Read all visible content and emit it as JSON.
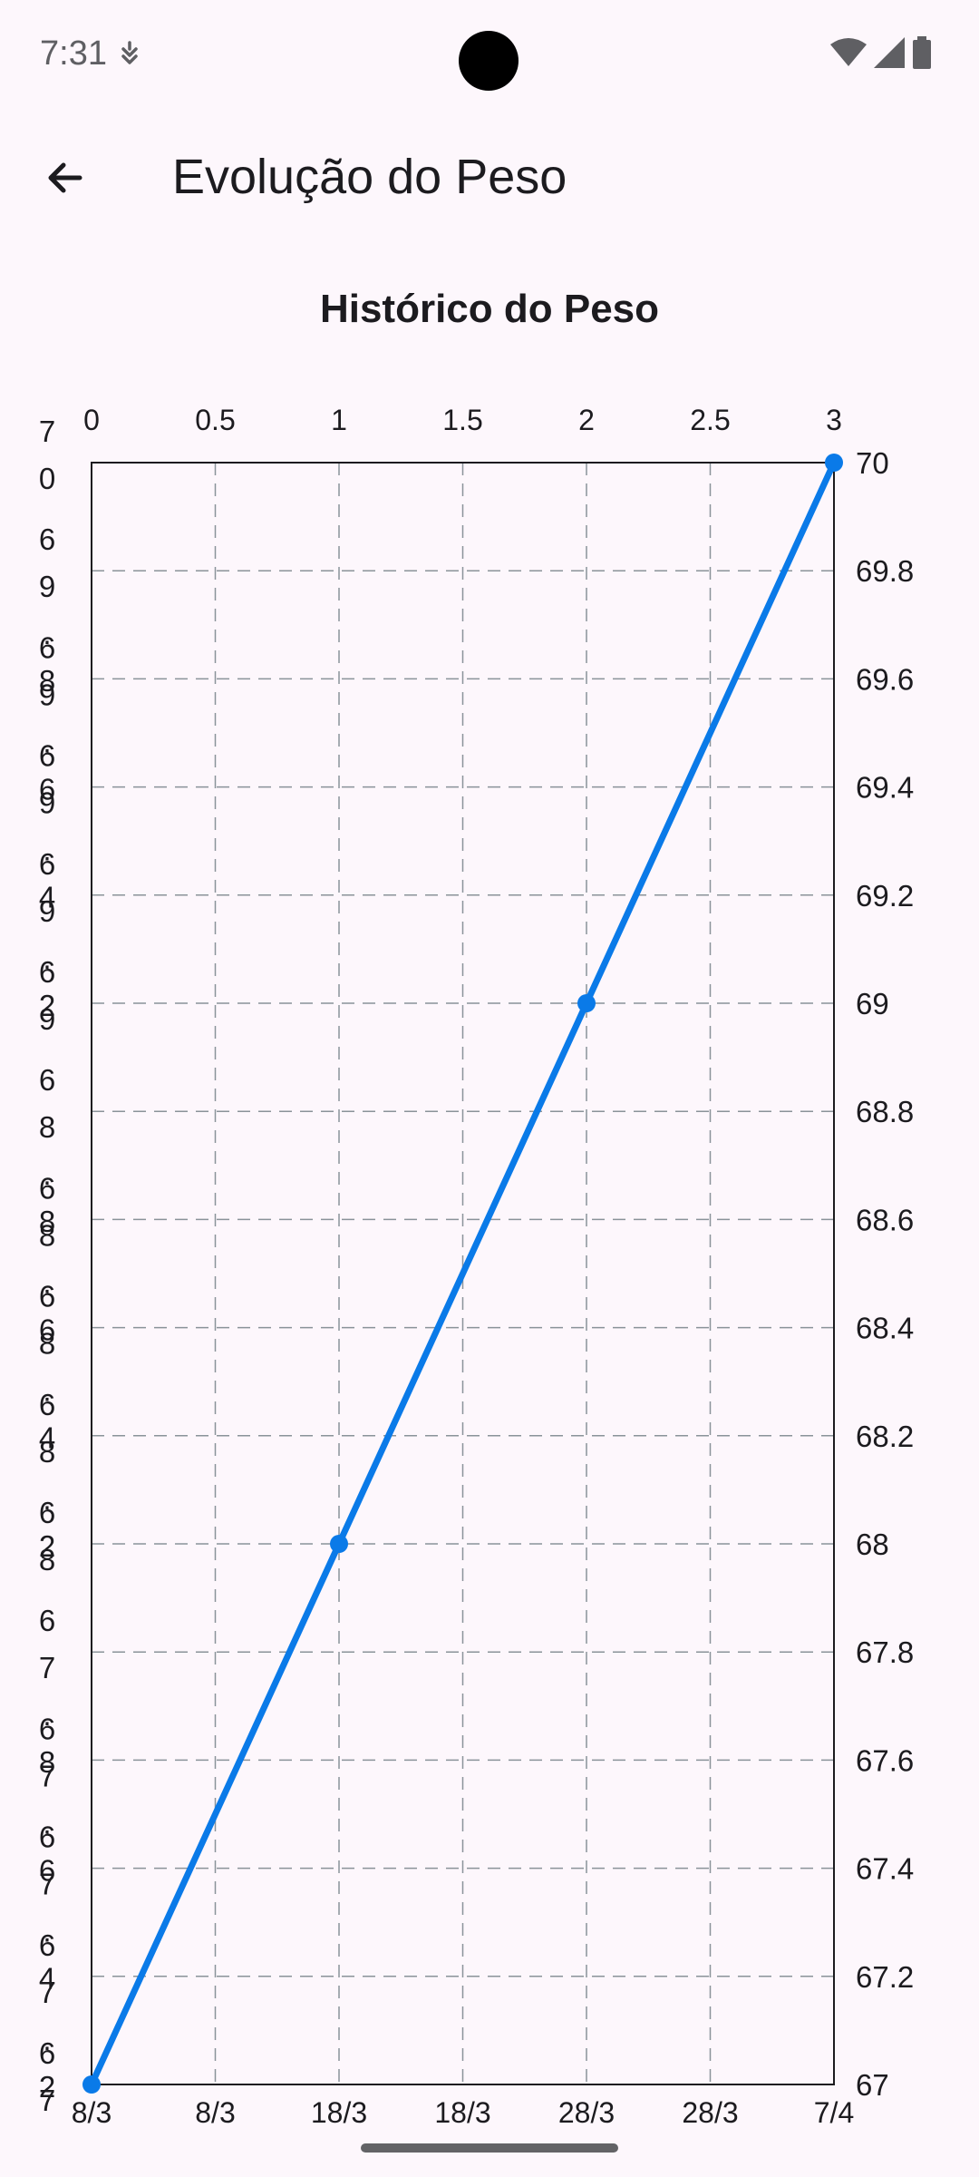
{
  "status_bar": {
    "time": "7:31",
    "icons": [
      "notification-icon",
      "wifi-icon",
      "signal-icon",
      "battery-icon"
    ]
  },
  "app_bar": {
    "back_icon": "arrow-back-icon",
    "title": "Evolução do Peso"
  },
  "colors": {
    "background": "#fdf7fc",
    "line": "#0a7ae8",
    "grid": "#8a9399",
    "text": "#1c1b1f"
  },
  "chart_data": {
    "type": "line",
    "title": "Histórico do Peso",
    "grid": true,
    "legend": "none",
    "x": [
      0,
      1,
      2,
      3
    ],
    "series": [
      {
        "values": [
          67,
          68,
          69,
          70
        ]
      }
    ],
    "xlim": [
      0,
      3
    ],
    "ylim": [
      67,
      70
    ],
    "top_x_ticks": [
      "0",
      "0.5",
      "1",
      "1.5",
      "2",
      "2.5",
      "3"
    ],
    "bottom_x_ticks": [
      "8/3",
      "8/3",
      "18/3",
      "18/3",
      "28/3",
      "28/3",
      "7/4"
    ],
    "right_y_ticks": [
      "70",
      "69.8",
      "69.6",
      "69.4",
      "69.2",
      "69",
      "68.8",
      "68.6",
      "68.4",
      "68.2",
      "68",
      "67.8",
      "67.6",
      "67.4",
      "67.2",
      "67"
    ],
    "left_y_ticks": [
      "70",
      "69.8",
      "69.6",
      "69.4",
      "69.2",
      "69",
      "68.8",
      "68.6",
      "68.4",
      "68.2",
      "68",
      "67.8",
      "67.6",
      "67.4",
      "67.2",
      "67"
    ]
  }
}
